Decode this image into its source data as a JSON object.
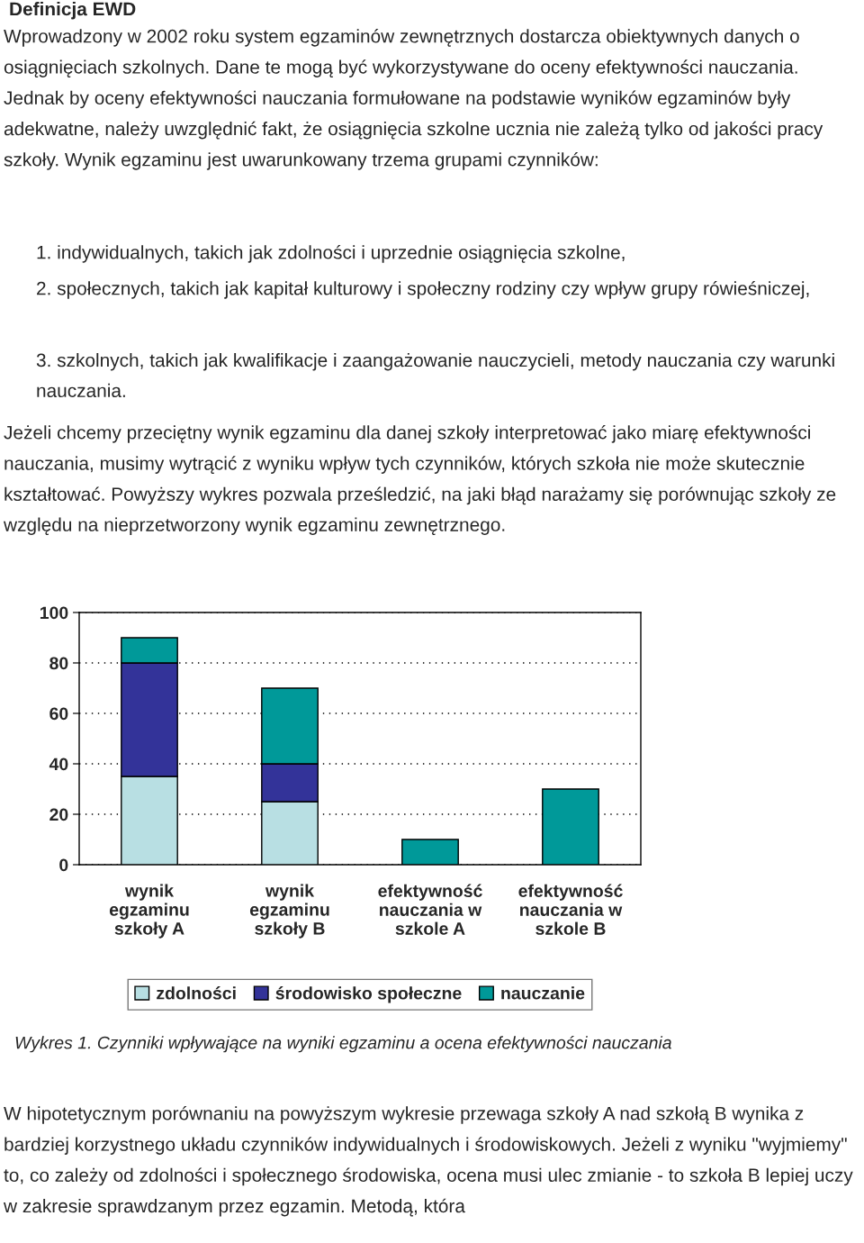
{
  "chart_data": {
    "type": "bar",
    "stacked": true,
    "title": "Definicja EWD",
    "categories": [
      "wynik\negzaminu\nszkoły A",
      "wynik\negzaminu\nszkoły B",
      "efektywność\nnauczania w\nszkole A",
      "efektywność\nnauczania w\nszkole B"
    ],
    "series": [
      {
        "name": "zdolności",
        "color": "#b8dfe3",
        "values": [
          35,
          25,
          null,
          null
        ]
      },
      {
        "name": "środowisko społeczne",
        "color": "#333399",
        "values": [
          45,
          15,
          null,
          null
        ]
      },
      {
        "name": "nauczanie",
        "color": "#009999",
        "values": [
          10,
          30,
          10,
          30
        ]
      }
    ],
    "ylim": [
      0,
      100
    ],
    "yticks": [
      0,
      20,
      40,
      60,
      80,
      100
    ],
    "grid": "y",
    "legend": "bottom",
    "annotations": [
      "Wprowadzony w 2002 roku system egzaminów zewnętrznych dostarcza obiektywnych danych o osiągnięciach szkolnych. Dane te mogą być wykorzystywane do oceny efektywności nauczania. Jednak by oceny efektywności nauczania formułowane na podstawie wyników egzaminów były adekwatne, należy uwzględnić fakt, że osiągnięcia szkolne ucznia nie zależą tylko od jakości pracy szkoły. Wynik egzaminu jest uwarunkowany trzema grupami czynników:",
      "1. indywidualnych, takich jak zdolności i uprzednie osiągnięcia szkolne,",
      "2. społecznych, takich jak kapitał kulturowy i społeczny rodziny czy wpływ grupy rówieśniczej,",
      "3. szkolnych, takich jak kwalifikacje i zaangażowanie nauczycieli, metody nauczania czy warunki nauczania.",
      "Jeżeli chcemy przeciętny wynik egzaminu dla danej szkoły interpretować jako miarę efektywności nauczania, musimy wytrącić z wyniku wpływ tych czynników, których szkoła nie może skutecznie kształtować. Powyższy wykres pozwala prześledzić, na jaki błąd narażamy się porównując szkoły ze względu na nieprzetworzony wynik egzaminu zewnętrznego.",
      "Wykres 1. Czynniki wpływające na wyniki egzaminu a ocena efektywności nauczania",
      "W hipotetycznym porównaniu na powyższym wykresie przewaga szkoły A nad szkołą B wynika z bardziej korzystnego układu czynników indywidualnych i środowiskowych. Jeżeli z wyniku \"wyjmiemy\" to, co zależy od zdolności i społecznego środowiska, ocena musi ulec zmianie - to szkoła B lepiej uczy w zakresie sprawdzanym przez egzamin. Metodą, która"
    ]
  }
}
